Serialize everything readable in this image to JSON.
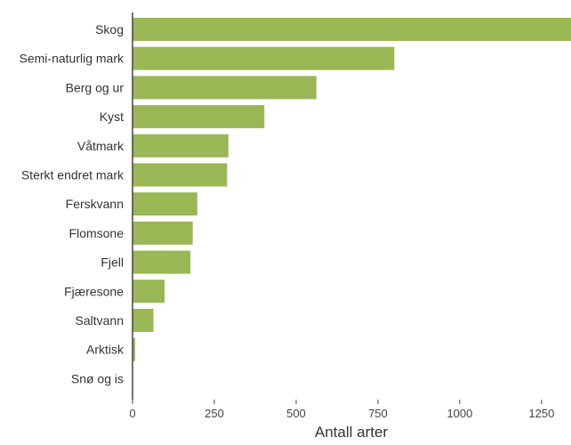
{
  "chart_data": {
    "type": "bar",
    "orientation": "horizontal",
    "categories": [
      "Skog",
      "Semi-naturlig mark",
      "Berg og ur",
      "Kyst",
      "Våtmark",
      "Sterkt endret mark",
      "Ferskvann",
      "Flomsone",
      "Fjell",
      "Fjæresone",
      "Saltvann",
      "Arktisk",
      "Snø og is"
    ],
    "values": [
      1340,
      800,
      562,
      403,
      293,
      289,
      198,
      184,
      177,
      98,
      64,
      8,
      0
    ],
    "xlabel": "Antall arter",
    "ylabel": "",
    "xlim": [
      0,
      1340
    ],
    "xticks": [
      0,
      250,
      500,
      750,
      1000,
      1250
    ],
    "bar_color": "#9ab756",
    "axis_color": "#444444",
    "grid": false
  }
}
